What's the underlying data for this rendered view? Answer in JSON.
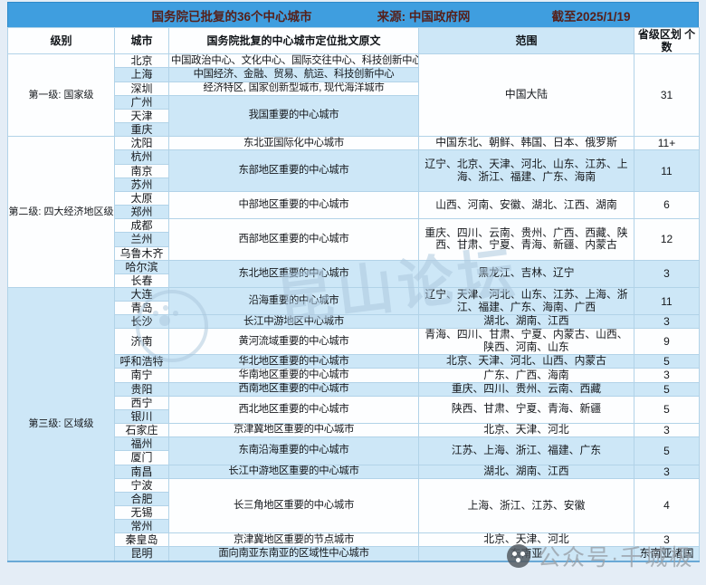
{
  "header": {
    "title": "国务院已批复的36个中心城市",
    "source": "来源: 中国政府网",
    "asof": "截至2025/1/19"
  },
  "colors": {
    "title_bar": "#3f9edf",
    "title_text": "#56201a",
    "stripe_white": "#fdfeff",
    "stripe_blue": "#cde7f7",
    "border": "#b2d3e8"
  },
  "table": {
    "columns": [
      "级别",
      "城市",
      "国务院批复的中心城市定位批文原文",
      "范围",
      "省级区划 个数"
    ],
    "column_header_shades": [
      "w",
      "w",
      "w",
      "b",
      "w"
    ],
    "rows": [
      {
        "level": {
          "text": "第一级: 国家级",
          "span": 6
        },
        "city": "北京",
        "def": {
          "text": "中国政治中心、文化中心、国际交往中心、科技创新中心",
          "span": 1
        },
        "scope": {
          "text": "中国大陆",
          "span": 6
        },
        "count": {
          "text": "31",
          "span": 6
        }
      },
      {
        "city": "上海",
        "def": {
          "text": "中国经济、金融、贸易、航运、科技创新中心",
          "span": 1
        }
      },
      {
        "city": "深圳",
        "def": {
          "text": "经济特区, 国家创新型城市, 现代海洋城市",
          "span": 1
        }
      },
      {
        "city": "广州",
        "def": {
          "text": "我国重要的中心城市",
          "span": 3
        }
      },
      {
        "city": "天津"
      },
      {
        "city": "重庆"
      },
      {
        "level": {
          "text": "第二级: 四大经济地区级",
          "span": 11
        },
        "city": "沈阳",
        "def": {
          "text": "东北亚国际化中心城市",
          "span": 1
        },
        "scope": {
          "text": "中国东北、朝鲜、韩国、日本、俄罗斯",
          "span": 1
        },
        "count": {
          "text": "11+",
          "span": 1
        }
      },
      {
        "city": "杭州",
        "def": {
          "text": "东部地区重要的中心城市",
          "span": 3
        },
        "scope": {
          "text": "辽宁、北京、天津、河北、山东、江苏、上海、浙江、福建、广东、海南",
          "span": 3
        },
        "count": {
          "text": "11",
          "span": 3
        }
      },
      {
        "city": "南京"
      },
      {
        "city": "苏州"
      },
      {
        "city": "太原",
        "def": {
          "text": "中部地区重要的中心城市",
          "span": 2
        },
        "scope": {
          "text": "山西、河南、安徽、湖北、江西、湖南",
          "span": 2
        },
        "count": {
          "text": "6",
          "span": 2
        }
      },
      {
        "city": "郑州"
      },
      {
        "city": "成都",
        "def": {
          "text": "西部地区重要的中心城市",
          "span": 3
        },
        "scope": {
          "text": "重庆、四川、云南、贵州、广西、西藏、陕西、甘肃、宁夏、青海、新疆、内蒙古",
          "span": 3
        },
        "count": {
          "text": "12",
          "span": 3
        }
      },
      {
        "city": "兰州"
      },
      {
        "city": "乌鲁木齐"
      },
      {
        "city": "哈尔滨",
        "def": {
          "text": "东北地区重要的中心城市",
          "span": 2
        },
        "scope": {
          "text": "黑龙江、吉林、辽宁",
          "span": 2
        },
        "count": {
          "text": "3",
          "span": 2
        }
      },
      {
        "city": "长春"
      },
      {
        "level": {
          "text": "第三级: 区域级",
          "span": 19
        },
        "city": "大连",
        "def": {
          "text": "沿海重要的中心城市",
          "span": 2
        },
        "scope": {
          "text": "辽宁、天津、河北、山东、江苏、上海、浙江、福建、广东、海南、广西",
          "span": 2
        },
        "count": {
          "text": "11",
          "span": 2
        }
      },
      {
        "city": "青岛"
      },
      {
        "city": "长沙",
        "def": {
          "text": "长江中游地区中心城市",
          "span": 1
        },
        "scope": {
          "text": "湖北、湖南、江西",
          "span": 1
        },
        "count": {
          "text": "3",
          "span": 1
        }
      },
      {
        "city": "济南",
        "def": {
          "text": "黄河流域重要的中心城市",
          "span": 1
        },
        "scope": {
          "text": "青海、四川、甘肃、宁夏、内蒙古、山西、陕西、河南、山东",
          "span": 1
        },
        "count": {
          "text": "9",
          "span": 1
        }
      },
      {
        "city": "呼和浩特",
        "def": {
          "text": "华北地区重要的中心城市",
          "span": 1
        },
        "scope": {
          "text": "北京、天津、河北、山西、内蒙古",
          "span": 1
        },
        "count": {
          "text": "5",
          "span": 1
        }
      },
      {
        "city": "南宁",
        "def": {
          "text": "华南地区重要的中心城市",
          "span": 1
        },
        "scope": {
          "text": "广东、广西、海南",
          "span": 1
        },
        "count": {
          "text": "3",
          "span": 1
        }
      },
      {
        "city": "贵阳",
        "def": {
          "text": "西南地区重要的中心城市",
          "span": 1
        },
        "scope": {
          "text": "重庆、四川、贵州、云南、西藏",
          "span": 1
        },
        "count": {
          "text": "5",
          "span": 1
        }
      },
      {
        "city": "西宁",
        "def": {
          "text": "西北地区重要的中心城市",
          "span": 2
        },
        "scope": {
          "text": "陕西、甘肃、宁夏、青海、新疆",
          "span": 2
        },
        "count": {
          "text": "5",
          "span": 2
        }
      },
      {
        "city": "银川"
      },
      {
        "city": "石家庄",
        "def": {
          "text": "京津冀地区重要的中心城市",
          "span": 1
        },
        "scope": {
          "text": "北京、天津、河北",
          "span": 1
        },
        "count": {
          "text": "3",
          "span": 1
        }
      },
      {
        "city": "福州",
        "def": {
          "text": "东南沿海重要的中心城市",
          "span": 2
        },
        "scope": {
          "text": "江苏、上海、浙江、福建、广东",
          "span": 2
        },
        "count": {
          "text": "5",
          "span": 2
        }
      },
      {
        "city": "厦门"
      },
      {
        "city": "南昌",
        "def": {
          "text": "长江中游地区重要的中心城市",
          "span": 1
        },
        "scope": {
          "text": "湖北、湖南、江西",
          "span": 1
        },
        "count": {
          "text": "3",
          "span": 1
        }
      },
      {
        "city": "宁波",
        "def": {
          "text": "长三角地区重要的中心城市",
          "span": 4
        },
        "scope": {
          "text": "上海、浙江、江苏、安徽",
          "span": 4
        },
        "count": {
          "text": "4",
          "span": 4
        }
      },
      {
        "city": "合肥"
      },
      {
        "city": "无锡"
      },
      {
        "city": "常州"
      },
      {
        "city": "秦皇岛",
        "def": {
          "text": "京津冀地区重要的节点城市",
          "span": 1
        },
        "scope": {
          "text": "北京、天津、河北",
          "span": 1
        },
        "count": {
          "text": "3",
          "span": 1
        }
      },
      {
        "city": "昆明",
        "def": {
          "text": "面向南亚东南亚的区域性中心城市",
          "span": 1
        },
        "scope": {
          "text": "东南亚",
          "span": 1
        },
        "count": {
          "text": "东南亚诸国",
          "span": 1
        }
      }
    ]
  },
  "watermarks": {
    "center_text": "昆山论坛",
    "corner_text": "公众号·千城极"
  }
}
